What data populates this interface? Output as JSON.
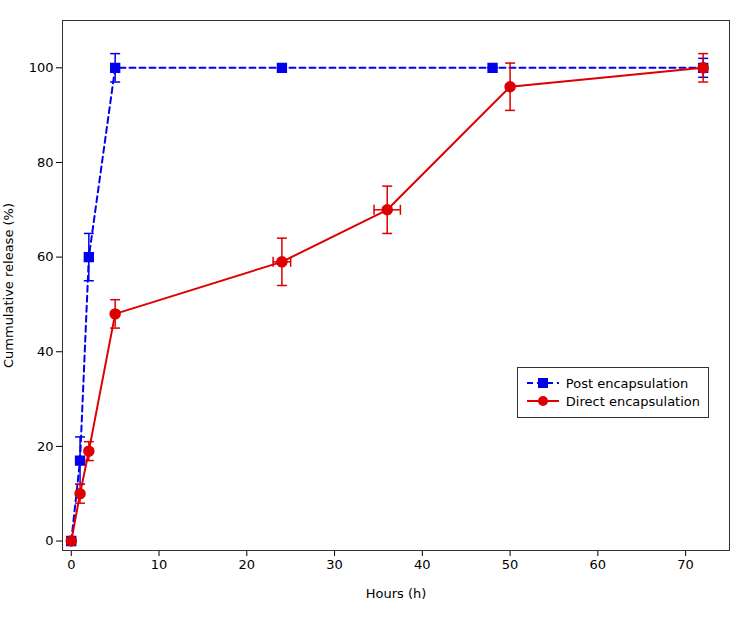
{
  "chart_data": {
    "type": "line",
    "xlabel": "Hours (h)",
    "ylabel": "Cummulative release (%)",
    "xlim": [
      -1,
      75
    ],
    "ylim": [
      -2,
      110
    ],
    "xticks": [
      0,
      10,
      20,
      30,
      40,
      50,
      60,
      70
    ],
    "yticks": [
      0,
      20,
      40,
      60,
      80,
      100
    ],
    "legend": "lower right",
    "series": [
      {
        "name": "Post encapsulation",
        "color": "#0000EE",
        "marker": "square",
        "line_style": "dashed",
        "x": [
          0,
          1,
          2,
          5,
          24,
          48,
          72
        ],
        "values": [
          0,
          17,
          60,
          100,
          100,
          100,
          100
        ],
        "yerr": [
          0,
          5,
          5,
          3,
          0,
          0,
          2
        ]
      },
      {
        "name": "Direct encapsulation",
        "color": "#DD0000",
        "marker": "circle",
        "line_style": "solid",
        "x": [
          0,
          1,
          2,
          5,
          24,
          36,
          50,
          72
        ],
        "values": [
          0,
          10,
          19,
          48,
          59,
          70,
          96,
          100
        ],
        "yerr": [
          0,
          2,
          2,
          3,
          5,
          5,
          5,
          3
        ],
        "xerr": [
          0,
          0,
          0,
          0,
          1.0,
          1.5,
          0,
          0
        ]
      }
    ]
  }
}
